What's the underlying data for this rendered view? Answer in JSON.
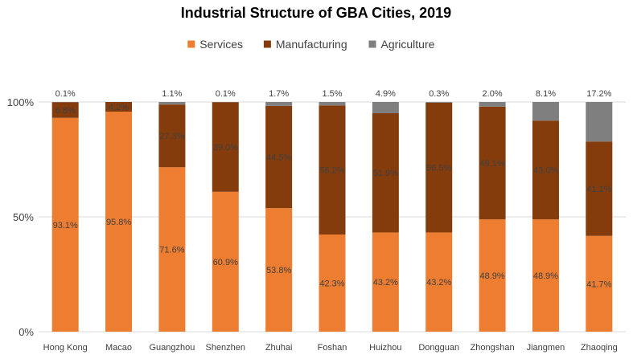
{
  "chart_data": {
    "type": "bar",
    "stacked": true,
    "title": "Industrial Structure of GBA Cities, 2019",
    "categories": [
      "Hong Kong",
      "Macao",
      "Guangzhou",
      "Shenzhen",
      "Zhuhai",
      "Foshan",
      "Huizhou",
      "Dongguan",
      "Zhongshan",
      "Jiangmen",
      "Zhaoqing"
    ],
    "series": [
      {
        "name": "Services",
        "color": "#ED7D31",
        "values": [
          93.1,
          95.8,
          71.6,
          60.9,
          53.8,
          42.3,
          43.2,
          43.2,
          48.9,
          48.9,
          41.7
        ],
        "labels": [
          "93.1%",
          "95.8%",
          "71.6%",
          "60.9%",
          "53.8%",
          "42.3%",
          "43.2%",
          "43.2%",
          "48.9%",
          "48.9%",
          "41.7%"
        ]
      },
      {
        "name": "Manufacturing",
        "color": "#843C0C",
        "values": [
          6.8,
          4.2,
          27.3,
          39.0,
          44.5,
          56.2,
          51.9,
          56.5,
          49.1,
          43.0,
          41.1
        ],
        "labels": [
          "6.8%",
          "4.2%",
          "27.3%",
          "39.0%",
          "44.5%",
          "56.2%",
          "51.9%",
          "56.5%",
          "49.1%",
          "43.0%",
          "41.1%"
        ]
      },
      {
        "name": "Agriculture",
        "color": "#7F7F7F",
        "values": [
          0.1,
          0.0,
          1.1,
          0.1,
          1.7,
          1.5,
          4.9,
          0.3,
          2.0,
          8.1,
          17.2
        ],
        "labels": [
          "0.1%",
          "",
          "1.1%",
          "0.1%",
          "1.7%",
          "1.5%",
          "4.9%",
          "0.3%",
          "2.0%",
          "8.1%",
          "17.2%"
        ]
      }
    ],
    "y_ticks": [
      "0%",
      "50%",
      "100%"
    ],
    "ylim": [
      0,
      100
    ],
    "legend_position": "top",
    "grid": true,
    "grid_color": "#D9D9D9"
  }
}
